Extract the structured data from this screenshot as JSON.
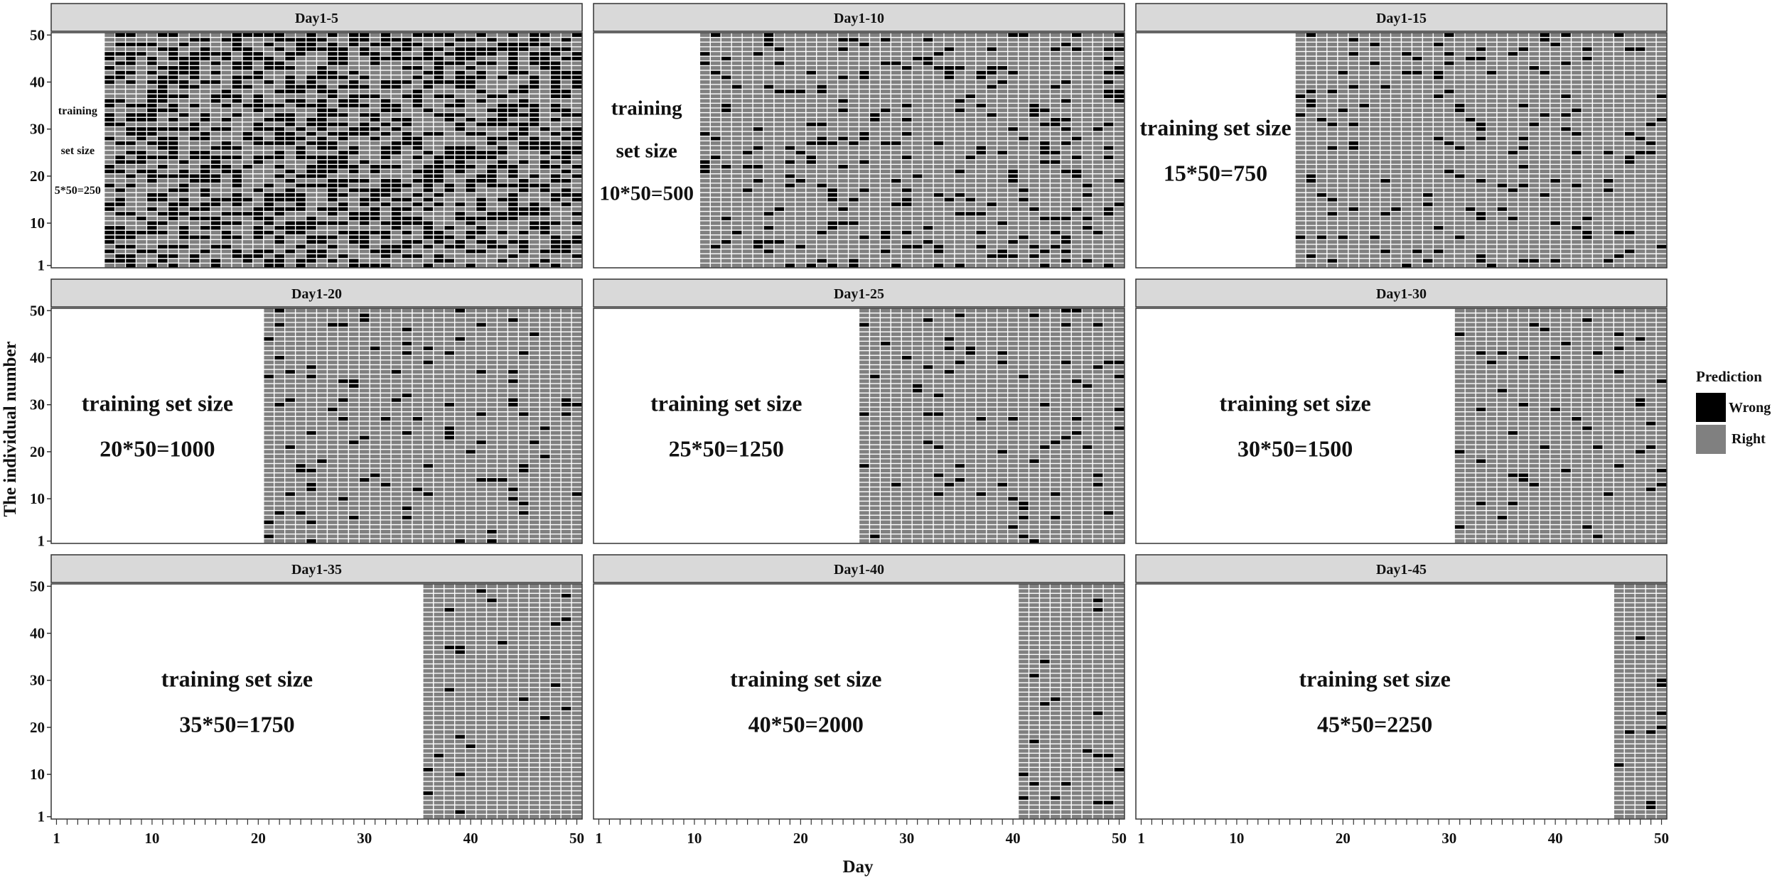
{
  "chart_data": {
    "type": "heatmap",
    "title": "",
    "xlabel": "Day",
    "ylabel": "The individual number",
    "xlim": [
      1,
      50
    ],
    "ylim": [
      1,
      50
    ],
    "x_ticks": [
      "1",
      "10",
      "20",
      "30",
      "40",
      "50"
    ],
    "y_ticks": [
      "1",
      "10",
      "20",
      "30",
      "40",
      "50"
    ],
    "grid": false,
    "legend": {
      "title": "Prediction",
      "placement": "right",
      "entries": [
        {
          "label": "Wrong",
          "color": "#000000"
        },
        {
          "label": "Right",
          "color": "#808080"
        }
      ]
    },
    "colors": {
      "wrong": "#000000",
      "right": "#808080",
      "strip": "#d9d9d9",
      "cell_border": "#ffffff"
    },
    "num_individuals": 50,
    "num_days": 50,
    "panels": [
      {
        "label": "Day1-5",
        "train_days": 5,
        "annotation": [
          "training",
          "set size",
          "5*50=250"
        ],
        "wrong_rate": 0.45
      },
      {
        "label": "Day1-10",
        "train_days": 10,
        "annotation": [
          "training",
          "set size",
          "10*50=500"
        ],
        "wrong_rate": 0.12
      },
      {
        "label": "Day1-15",
        "train_days": 15,
        "annotation": [
          "training set size",
          "15*50=750"
        ],
        "wrong_rate": 0.07
      },
      {
        "label": "Day1-20",
        "train_days": 20,
        "annotation": [
          "training set size",
          "20*50=1000"
        ],
        "wrong_rate": 0.06
      },
      {
        "label": "Day1-25",
        "train_days": 25,
        "annotation": [
          "training set size",
          "25*50=1250"
        ],
        "wrong_rate": 0.06
      },
      {
        "label": "Day1-30",
        "train_days": 30,
        "annotation": [
          "training set size",
          "30*50=1500"
        ],
        "wrong_rate": 0.05
      },
      {
        "label": "Day1-35",
        "train_days": 35,
        "annotation": [
          "training set size",
          "35*50=1750"
        ],
        "wrong_rate": 0.04
      },
      {
        "label": "Day1-40",
        "train_days": 40,
        "annotation": [
          "training set size",
          "40*50=2000"
        ],
        "wrong_rate": 0.04
      },
      {
        "label": "Day1-45",
        "train_days": 45,
        "annotation": [
          "training set size",
          "45*50=2250"
        ],
        "wrong_rate": 0.03
      }
    ]
  }
}
